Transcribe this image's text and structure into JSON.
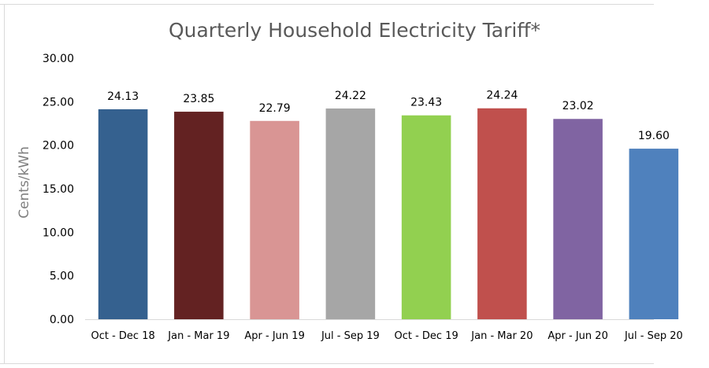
{
  "chart_data": {
    "type": "bar",
    "title": "Quarterly Household Electricity Tariff*",
    "xlabel": "",
    "ylabel": "Cents/kWh",
    "ylim": [
      0,
      30
    ],
    "yticks": [
      "0.00",
      "5.00",
      "10.00",
      "15.00",
      "20.00",
      "25.00",
      "30.00"
    ],
    "grid": false,
    "categories": [
      "Oct - Dec 18",
      "Jan - Mar 19",
      "Apr - Jun 19",
      "Jul - Sep 19",
      "Oct - Dec 19",
      "Jan - Mar 20",
      "Apr - Jun 20",
      "Jul - Sep 20"
    ],
    "values": [
      24.13,
      23.85,
      22.79,
      24.22,
      23.43,
      24.24,
      23.02,
      19.6
    ],
    "value_labels": [
      "24.13",
      "23.85",
      "22.79",
      "24.22",
      "23.43",
      "24.24",
      "23.02",
      "19.60"
    ],
    "colors": [
      "#35618f",
      "#632222",
      "#d99594",
      "#a6a6a6",
      "#92d050",
      "#c0504d",
      "#8064a2",
      "#4f81bd"
    ]
  }
}
